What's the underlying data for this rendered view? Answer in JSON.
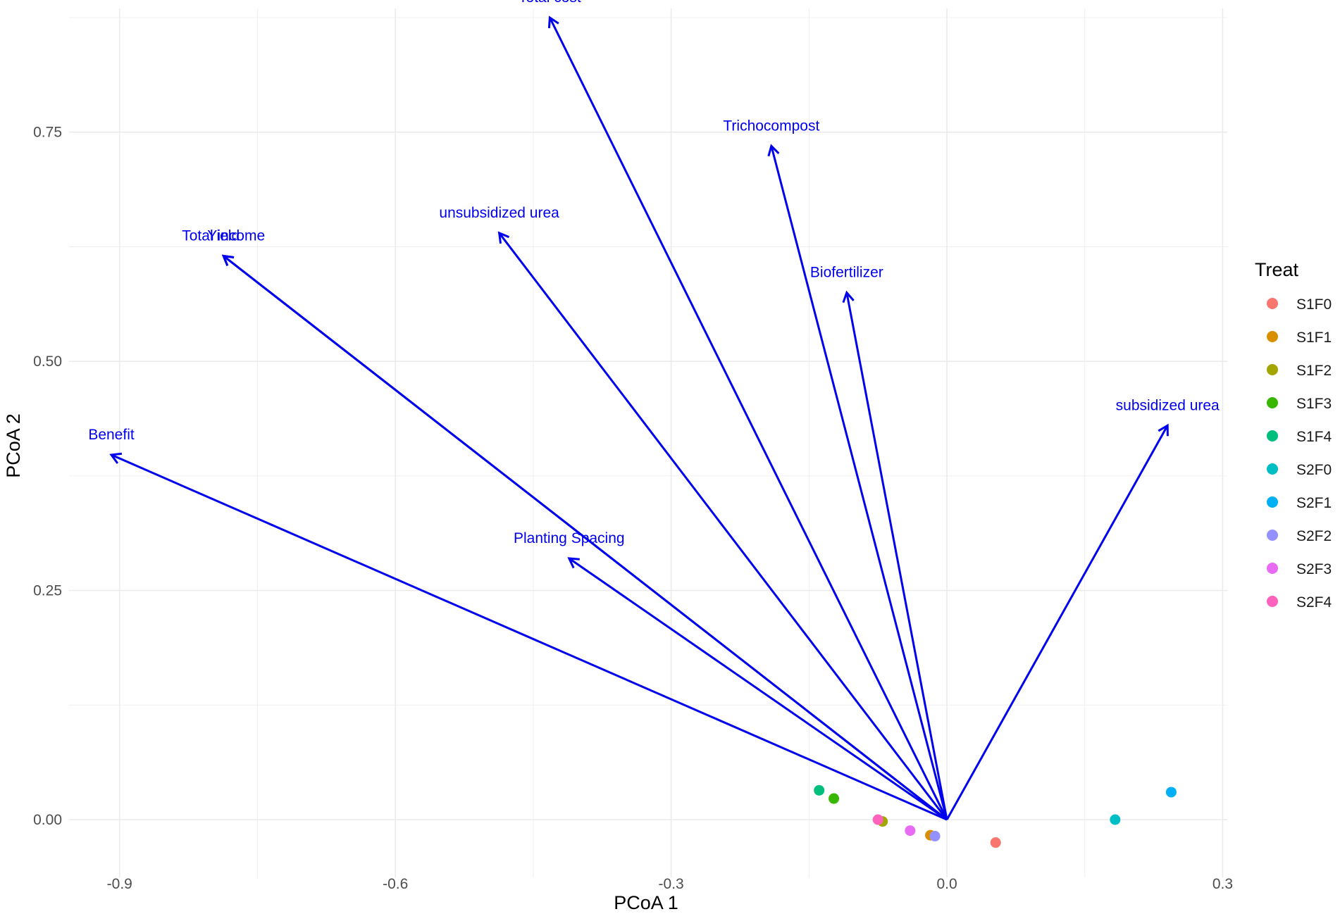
{
  "chart_data": {
    "type": "scatter",
    "title": "",
    "xlabel": "PCoA 1",
    "ylabel": "PCoA 2",
    "xlim": [
      -0.955,
      0.305
    ],
    "ylim": [
      -0.063,
      0.885
    ],
    "x_ticks": [
      -0.9,
      -0.6,
      -0.3,
      0.0,
      0.3
    ],
    "x_tick_labels": [
      "-0.9",
      "-0.6",
      "-0.3",
      "0.0",
      "0.3"
    ],
    "y_ticks": [
      0.0,
      0.25,
      0.5,
      0.75
    ],
    "y_tick_labels": [
      "0.00",
      "0.25",
      "0.50",
      "0.75"
    ],
    "grid": true,
    "legend_position": "right",
    "legend_title": "Treat",
    "vector_color": "#0000ee",
    "vectors": [
      {
        "label": "Total cost",
        "x": -0.432,
        "y": 0.875
      },
      {
        "label": "Trichocompost",
        "x": -0.191,
        "y": 0.735
      },
      {
        "label": "unsubsidized urea",
        "x": -0.487,
        "y": 0.64
      },
      {
        "label": "Total income",
        "x": -0.787,
        "y": 0.615
      },
      {
        "label": "Yield",
        "x": -0.787,
        "y": 0.615
      },
      {
        "label": "Biofertilizer",
        "x": -0.109,
        "y": 0.575
      },
      {
        "label": "subsidized urea",
        "x": 0.24,
        "y": 0.43
      },
      {
        "label": "Benefit",
        "x": -0.909,
        "y": 0.398
      },
      {
        "label": "Planting Spacing",
        "x": -0.411,
        "y": 0.285
      }
    ],
    "series": [
      {
        "name": "S1F0",
        "color": "#F8766D",
        "x": 0.053,
        "y": -0.025
      },
      {
        "name": "S1F1",
        "color": "#D89000",
        "x": -0.018,
        "y": -0.017
      },
      {
        "name": "S1F2",
        "color": "#A3A500",
        "x": -0.07,
        "y": -0.002
      },
      {
        "name": "S1F3",
        "color": "#39B600",
        "x": -0.123,
        "y": 0.023
      },
      {
        "name": "S1F4",
        "color": "#00BF7D",
        "x": -0.139,
        "y": 0.032
      },
      {
        "name": "S2F0",
        "color": "#00BFC4",
        "x": 0.183,
        "y": 0.0
      },
      {
        "name": "S2F1",
        "color": "#00B0F6",
        "x": 0.244,
        "y": 0.03
      },
      {
        "name": "S2F2",
        "color": "#9590FF",
        "x": -0.013,
        "y": -0.018
      },
      {
        "name": "S2F3",
        "color": "#E76BF3",
        "x": -0.04,
        "y": -0.012
      },
      {
        "name": "S2F4",
        "color": "#FF62BC",
        "x": -0.075,
        "y": 0.0
      }
    ]
  }
}
